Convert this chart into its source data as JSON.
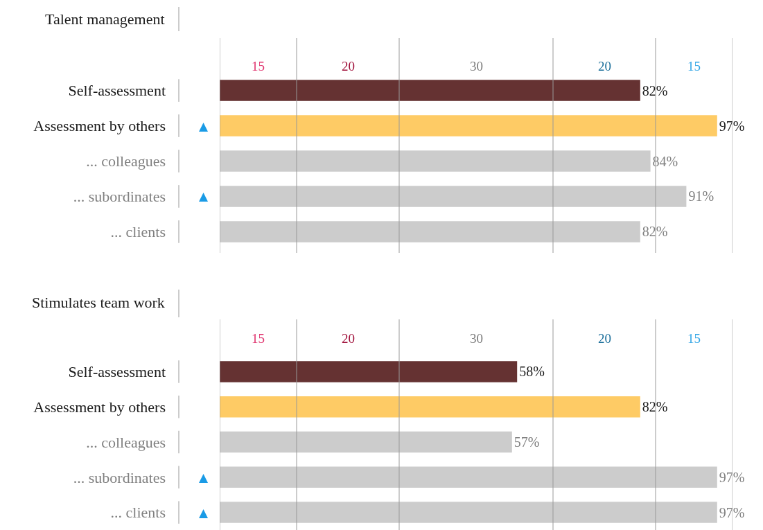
{
  "chart_data": [
    {
      "type": "bar",
      "orientation": "horizontal",
      "title": "Talent management",
      "categories": [
        "Self-assessment",
        "Assessment by others",
        "... colleagues",
        "... subordinates",
        "... clients"
      ],
      "values": [
        82,
        97,
        84,
        91,
        82
      ],
      "colors": [
        "#653232",
        "#fecb65",
        "#cccccc",
        "#cccccc",
        "#cccccc"
      ],
      "value_labels": [
        "82%",
        "97%",
        "84%",
        "91%",
        "82%"
      ],
      "xlim": [
        0,
        100
      ],
      "tick_labels": "y",
      "ref_lines": [
        {
          "axis": "x",
          "value": 0,
          "label": null,
          "color": "#999999"
        },
        {
          "axis": "x",
          "value": 15,
          "label": null,
          "color": "#999999"
        },
        {
          "axis": "x",
          "value": 35,
          "label": null,
          "color": "#999999"
        },
        {
          "axis": "x",
          "value": 65,
          "label": null,
          "color": "#999999"
        },
        {
          "axis": "x",
          "value": 85,
          "label": null,
          "color": "#999999"
        },
        {
          "axis": "x",
          "value": 100,
          "label": null,
          "color": "#999999"
        }
      ],
      "annotations": [
        "15",
        "20",
        "30",
        "20",
        "15",
        "▲",
        "▲"
      ]
    },
    {
      "type": "bar",
      "orientation": "horizontal",
      "title": "Stimulates team work",
      "categories": [
        "Self-assessment",
        "Assessment by others",
        "... colleagues",
        "... subordinates",
        "... clients"
      ],
      "values": [
        58,
        82,
        57,
        97,
        97
      ],
      "colors": [
        "#653232",
        "#fecb65",
        "#cccccc",
        "#cccccc",
        "#cccccc"
      ],
      "value_labels": [
        "58%",
        "82%",
        "57%",
        "97%",
        "97%"
      ],
      "xlim": [
        0,
        100
      ],
      "tick_labels": "y",
      "ref_lines": [
        {
          "axis": "x",
          "value": 0,
          "label": null,
          "color": "#999999"
        },
        {
          "axis": "x",
          "value": 15,
          "label": null,
          "color": "#999999"
        },
        {
          "axis": "x",
          "value": 35,
          "label": null,
          "color": "#999999"
        },
        {
          "axis": "x",
          "value": 65,
          "label": null,
          "color": "#999999"
        },
        {
          "axis": "x",
          "value": 85,
          "label": null,
          "color": "#999999"
        },
        {
          "axis": "x",
          "value": 100,
          "label": null,
          "color": "#999999"
        }
      ],
      "annotations": [
        "15",
        "20",
        "30",
        "20",
        "15",
        "▲",
        "▲"
      ]
    }
  ]
}
